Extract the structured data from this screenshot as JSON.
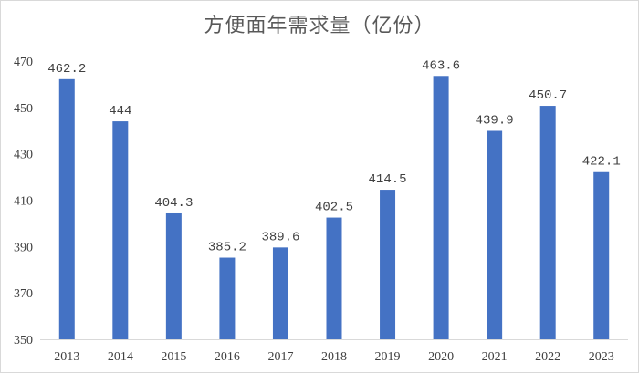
{
  "chart_data": {
    "type": "bar",
    "title": "方便面年需求量（亿份）",
    "xlabel": "",
    "ylabel": "",
    "categories": [
      "2013",
      "2014",
      "2015",
      "2016",
      "2017",
      "2018",
      "2019",
      "2020",
      "2021",
      "2022",
      "2023"
    ],
    "values": [
      462.2,
      444,
      404.3,
      385.2,
      389.6,
      402.5,
      414.5,
      463.6,
      439.9,
      450.7,
      422.1
    ],
    "value_labels": [
      "462.2",
      "444",
      "404.3",
      "385.2",
      "389.6",
      "402.5",
      "414.5",
      "463.6",
      "439.9",
      "450.7",
      "422.1"
    ],
    "ylim": [
      350,
      470
    ],
    "yticks": [
      350,
      370,
      390,
      410,
      430,
      450,
      470
    ],
    "bar_color": "#4472c4",
    "grid": false,
    "legend": "none"
  }
}
